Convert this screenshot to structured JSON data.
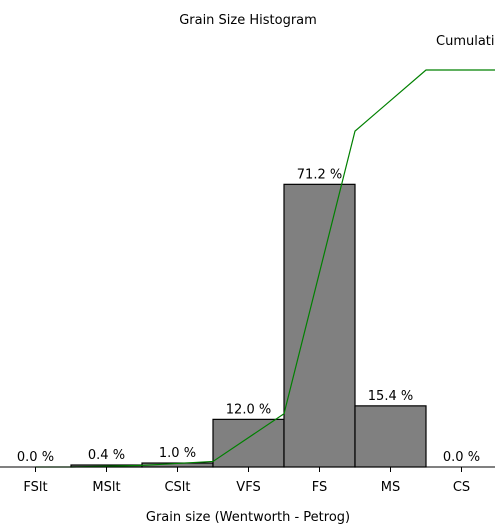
{
  "chart_data": {
    "type": "bar",
    "title": "Grain Size Histogram",
    "xlabel": "Grain size (Wentworth - Petrog)",
    "categories": [
      "FSlt",
      "MSlt",
      "CSlt",
      "VFS",
      "FS",
      "MS",
      "CS"
    ],
    "series": [
      {
        "name": "",
        "values": [
          0.0,
          0.4,
          1.0,
          12.0,
          71.2,
          15.4,
          0.0
        ],
        "data_labels": [
          "0.0 %",
          "0.4 %",
          "1.0 %",
          "12.0 %",
          "71.2 %",
          "15.4 %",
          "0.0 %"
        ]
      },
      {
        "name": "Cumulati",
        "type": "line",
        "values": [
          0.0,
          0.4,
          1.4,
          13.4,
          84.6,
          100.0,
          100.0
        ]
      }
    ],
    "ylim": [
      0,
      100
    ],
    "grid": false,
    "legend_position": "top-right",
    "colors": {
      "bar_fill": "#808080",
      "bar_stroke": "#000000",
      "line": "#008000",
      "axis": "#000000"
    }
  }
}
